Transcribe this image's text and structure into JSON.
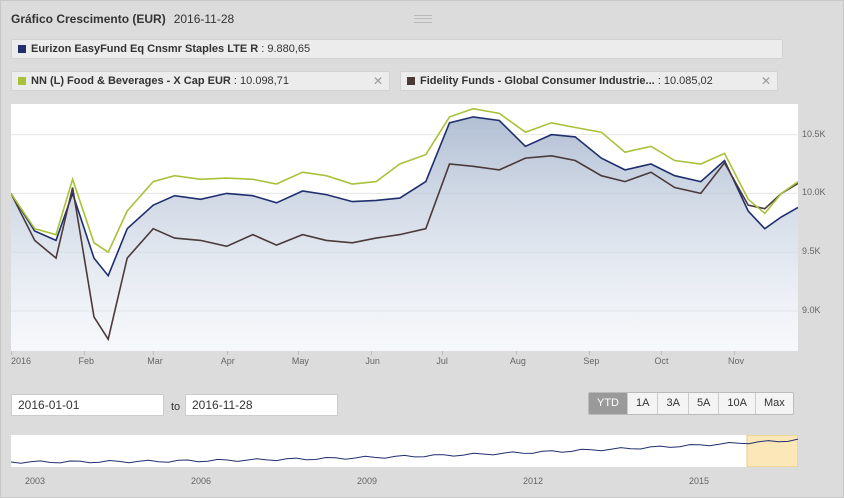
{
  "header": {
    "title": "Gráfico Crescimento (EUR)",
    "date": "2016-11-28"
  },
  "legend": [
    {
      "name": "Eurizon EasyFund Eq Cnsmr Staples LTE R",
      "value": "9.880,65",
      "color": "#1f2f6e",
      "closable": false
    },
    {
      "name": "NN (L) Food & Beverages - X Cap EUR",
      "value": "10.098,71",
      "color": "#a8c23a",
      "closable": true
    },
    {
      "name": "Fidelity Funds - Global Consumer Industrie...",
      "value": "10.085,02",
      "color": "#4b3a3a",
      "closable": true
    }
  ],
  "range": {
    "from": "2016-01-01",
    "to_label": "to",
    "to": "2016-11-28",
    "buttons": [
      "YTD",
      "1A",
      "3A",
      "5A",
      "10A",
      "Max"
    ],
    "active": "YTD"
  },
  "chart_data": {
    "type": "line",
    "x_ticks": [
      "2016",
      "Feb",
      "Mar",
      "Apr",
      "May",
      "Jun",
      "Jul",
      "Aug",
      "Sep",
      "Oct",
      "Nov"
    ],
    "y_ticks": [
      "10.5K",
      "10.0K",
      "9.5K",
      "9.0K"
    ],
    "y_tick_values": [
      10500,
      10000,
      9500,
      9000
    ],
    "ylim": [
      8660,
      10760
    ],
    "x": [
      "2016-01-01",
      "2016-01-11",
      "2016-01-20",
      "2016-01-27",
      "2016-02-05",
      "2016-02-11",
      "2016-02-19",
      "2016-03-01",
      "2016-03-10",
      "2016-03-21",
      "2016-04-01",
      "2016-04-12",
      "2016-04-22",
      "2016-05-03",
      "2016-05-13",
      "2016-05-24",
      "2016-06-03",
      "2016-06-13",
      "2016-06-24",
      "2016-07-04",
      "2016-07-14",
      "2016-07-25",
      "2016-08-05",
      "2016-08-16",
      "2016-08-26",
      "2016-09-06",
      "2016-09-16",
      "2016-09-27",
      "2016-10-07",
      "2016-10-18",
      "2016-10-28",
      "2016-11-07",
      "2016-11-14",
      "2016-11-21",
      "2016-11-28"
    ],
    "series": [
      {
        "name": "Eurizon EasyFund Eq Cnsmr Staples LTE R",
        "color": "#1f2f6e",
        "fill": true,
        "values": [
          10000,
          9680,
          9600,
          10000,
          9450,
          9300,
          9700,
          9900,
          9980,
          9950,
          10000,
          9980,
          9920,
          10020,
          9990,
          9930,
          9940,
          9960,
          10100,
          10600,
          10650,
          10620,
          10400,
          10500,
          10480,
          10300,
          10200,
          10250,
          10150,
          10100,
          10280,
          9850,
          9700,
          9800,
          9880
        ]
      },
      {
        "name": "NN (L) Food & Beverages - X Cap EUR",
        "color": "#a8c23a",
        "fill": false,
        "values": [
          10000,
          9700,
          9650,
          10120,
          9580,
          9500,
          9850,
          10100,
          10150,
          10120,
          10130,
          10120,
          10080,
          10180,
          10150,
          10080,
          10100,
          10250,
          10330,
          10650,
          10720,
          10680,
          10520,
          10600,
          10560,
          10520,
          10350,
          10400,
          10280,
          10250,
          10340,
          9950,
          9830,
          10000,
          10099
        ]
      },
      {
        "name": "Fidelity Funds - Global Consumer Industrie...",
        "color": "#4b3a3a",
        "fill": false,
        "values": [
          10000,
          9600,
          9450,
          10050,
          8950,
          8760,
          9450,
          9700,
          9620,
          9600,
          9550,
          9650,
          9560,
          9650,
          9600,
          9580,
          9620,
          9650,
          9700,
          10250,
          10230,
          10200,
          10300,
          10320,
          10280,
          10150,
          10100,
          10180,
          10050,
          10000,
          10260,
          9900,
          9870,
          10000,
          10085
        ]
      }
    ]
  },
  "navigator": {
    "years": [
      "2003",
      "2006",
      "2009",
      "2012",
      "2015"
    ]
  }
}
